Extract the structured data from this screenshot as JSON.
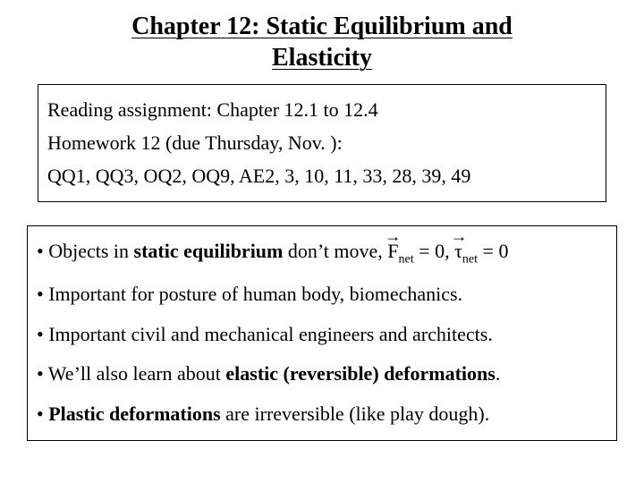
{
  "title": "Chapter 12: Static Equilibrium and Elasticity",
  "assignment_box": {
    "reading_label": "Reading assignment:  Chapter 12.1 to 12.4",
    "homework_label": "Homework  12 (due Thursday, Nov. ):",
    "problems": "QQ1, QQ3, OQ2, OQ9, AE2, 3, 10, 11, 33, 28, 39, 49"
  },
  "bullets": {
    "b1_pre": "• Objects in ",
    "b1_bold": "static equilibrium",
    "b1_mid": " don’t move, ",
    "b1_F": "F",
    "b1_Feq": " = 0, ",
    "b1_tau": "τ",
    "b1_taueq": " = 0",
    "b1_sub": "net",
    "b2": "• Important for posture of human body, biomechanics.",
    "b3": "• Important civil and mechanical engineers and architects.",
    "b4_pre": "• We’ll also learn about ",
    "b4_bold": "elastic (reversible) deformations",
    "b4_post": ".",
    "b5_pre": "• ",
    "b5_bold": "Plastic deformations",
    "b5_post": " are irreversible (like play dough)."
  },
  "style": {
    "background": "#ffffff",
    "text_color": "#000000",
    "title_fontsize": 28,
    "body_fontsize": 22,
    "sub_fontsize": 14,
    "border_color": "#000000"
  }
}
